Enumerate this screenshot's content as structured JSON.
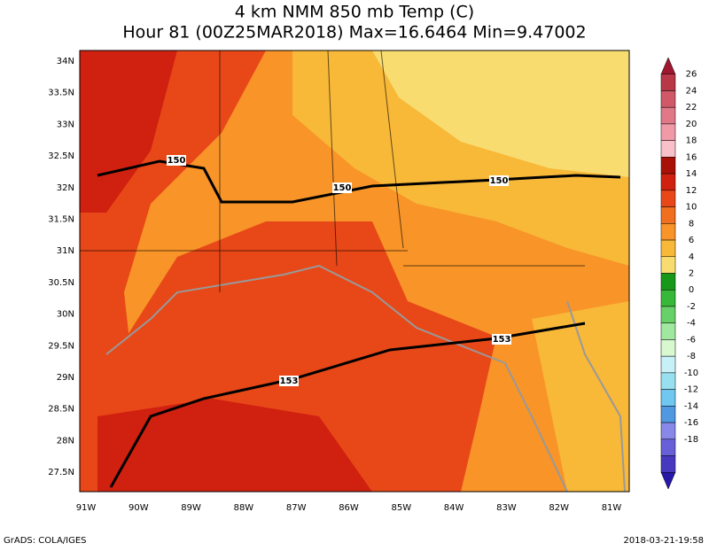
{
  "header": {
    "title": "4 km NMM 850 mb Temp (C)",
    "subtitle": "Hour 81 (00Z25MAR2018) Max=16.6464 Min=9.47002"
  },
  "lat_labels": [
    "34N",
    "33.5N",
    "33N",
    "32.5N",
    "32N",
    "31.5N",
    "31N",
    "30.5N",
    "30N",
    "29.5N",
    "29N",
    "28.5N",
    "28N",
    "27.5N"
  ],
  "lon_labels": [
    "91W",
    "90W",
    "89W",
    "88W",
    "87W",
    "86W",
    "85W",
    "84W",
    "83W",
    "82W",
    "81W"
  ],
  "contour_labels": [
    "150",
    "150",
    "150",
    "153",
    "153"
  ],
  "colorbar": {
    "labels": [
      26,
      24,
      22,
      20,
      18,
      16,
      14,
      12,
      10,
      8,
      6,
      4,
      2,
      0,
      -2,
      -4,
      -6,
      -8,
      -10,
      -12,
      -14,
      -16,
      -18
    ],
    "colors": [
      "#a01830",
      "#b83848",
      "#d05868",
      "#e07888",
      "#f09aa8",
      "#f8c0c8",
      "#a81008",
      "#d02010",
      "#e84818",
      "#f07020",
      "#f89428",
      "#f8b838",
      "#f8dc70",
      "#189818",
      "#38b838",
      "#68d068",
      "#a0e8a0",
      "#d8f8d0",
      "#c8f0f8",
      "#98e0f0",
      "#70c8f0",
      "#5098e0",
      "#8888e8",
      "#6860d8",
      "#4838c0",
      "#2818a8"
    ]
  },
  "footer": {
    "left": "GrADS: COLA/IGES",
    "right": "2018-03-21-19:58"
  }
}
